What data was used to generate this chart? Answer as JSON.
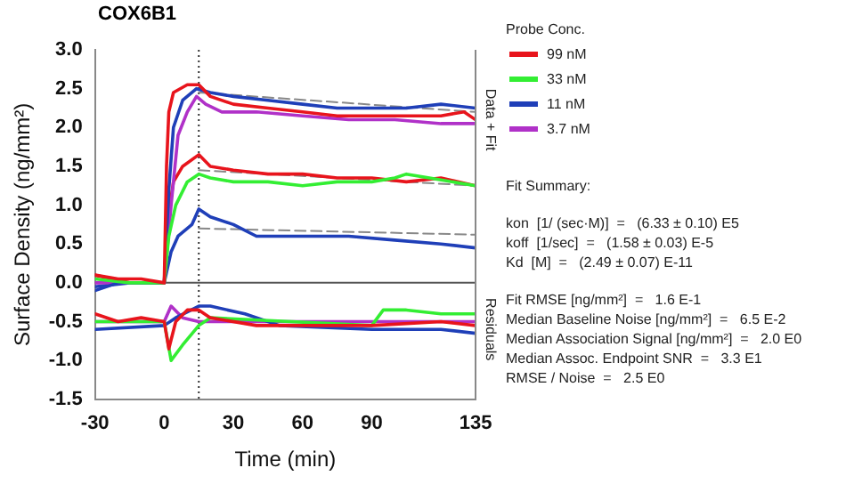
{
  "chart_data": {
    "type": "line",
    "title": "COX6B1",
    "xlabel": "Time (min)",
    "ylabel": "Surface Density (ng/mm²)",
    "legend_title": "Probe Conc.",
    "legend": "right",
    "marker": "none",
    "grid": false,
    "xlim": [
      -30,
      135
    ],
    "xticks": [
      -30,
      0,
      30,
      60,
      90,
      135
    ],
    "ylim": [
      -1.5,
      3.0
    ],
    "yticks": [
      {
        "value": -1.5,
        "label": "-1.5"
      },
      {
        "value": -1,
        "label": "-1.0"
      },
      {
        "value": -0.5,
        "label": "-0.5"
      },
      {
        "value": 0,
        "label": "0.0"
      },
      {
        "value": 0.5,
        "label": "0.5"
      },
      {
        "value": 1,
        "label": "1.0"
      },
      {
        "value": 1.5,
        "label": "1.5"
      },
      {
        "value": 2,
        "label": "2.0"
      },
      {
        "value": 2.5,
        "label": "2.5"
      },
      {
        "value": 3,
        "label": "3.0"
      }
    ],
    "ref_lines": [
      {
        "axis": "y",
        "value": 0,
        "color": "#555555",
        "line_style": "solid"
      },
      {
        "axis": "x",
        "value": 15,
        "color": "#333333",
        "line_style": "dotted"
      }
    ],
    "series": [
      {
        "name": "99 nM",
        "color": "#e8141c",
        "x": [
          -30,
          -20,
          -10,
          0,
          1,
          2,
          4,
          10,
          15,
          20,
          30,
          45,
          60,
          75,
          90,
          105,
          120,
          130,
          135
        ],
        "values": [
          0.1,
          0.05,
          0.05,
          0,
          1.5,
          2.2,
          2.45,
          2.55,
          2.55,
          2.4,
          2.3,
          2.25,
          2.2,
          2.15,
          2.15,
          2.15,
          2.15,
          2.2,
          2.1
        ]
      },
      {
        "name": "33 nM",
        "color": "#33ee33",
        "x": [
          -30,
          -15,
          0,
          2,
          5,
          10,
          15,
          20,
          30,
          45,
          60,
          75,
          90,
          100,
          105,
          115,
          135
        ],
        "values": [
          0.05,
          0,
          0,
          0.6,
          1.0,
          1.3,
          1.4,
          1.35,
          1.3,
          1.3,
          1.25,
          1.3,
          1.3,
          1.35,
          1.4,
          1.35,
          1.25
        ]
      },
      {
        "name": "11 nM",
        "color": "#1f3fb8",
        "x": [
          -30,
          -20,
          -10,
          0,
          2,
          4,
          8,
          14,
          20,
          30,
          45,
          60,
          75,
          90,
          105,
          120,
          135
        ],
        "values": [
          -0.1,
          0,
          0,
          0,
          1.2,
          2.0,
          2.35,
          2.5,
          2.45,
          2.4,
          2.35,
          2.3,
          2.25,
          2.25,
          2.25,
          2.3,
          2.25
        ]
      },
      {
        "name": "3.7 nM",
        "color": "#b031c8",
        "x": [
          -30,
          -15,
          0,
          3,
          6,
          10,
          14,
          18,
          25,
          40,
          60,
          80,
          100,
          120,
          135
        ],
        "values": [
          0,
          0,
          0,
          1.0,
          1.9,
          2.2,
          2.4,
          2.3,
          2.2,
          2.2,
          2.15,
          2.1,
          2.1,
          2.05,
          2.05
        ]
      },
      {
        "color": "#e8141c",
        "x": [
          -30,
          -15,
          0,
          2,
          4,
          8,
          15,
          20,
          30,
          45,
          60,
          75,
          90,
          105,
          120,
          135
        ],
        "values": [
          0.1,
          0,
          0,
          0.9,
          1.3,
          1.5,
          1.65,
          1.5,
          1.45,
          1.4,
          1.4,
          1.35,
          1.35,
          1.3,
          1.35,
          1.25
        ]
      },
      {
        "color": "#1f3fb8",
        "x": [
          -30,
          -15,
          0,
          3,
          6,
          12,
          15,
          20,
          30,
          40,
          60,
          80,
          100,
          120,
          135
        ],
        "values": [
          -0.05,
          0,
          0,
          0.4,
          0.6,
          0.75,
          0.95,
          0.85,
          0.75,
          0.6,
          0.6,
          0.6,
          0.55,
          0.5,
          0.45
        ]
      },
      {
        "color": "#888888",
        "line_style": "dashed",
        "x": [
          15,
          135
        ],
        "values": [
          2.45,
          2.2
        ]
      },
      {
        "color": "#888888",
        "line_style": "dashed",
        "x": [
          15,
          135
        ],
        "values": [
          1.45,
          1.25
        ]
      },
      {
        "color": "#888888",
        "line_style": "dashed",
        "x": [
          15,
          135
        ],
        "values": [
          0.7,
          0.62
        ]
      },
      {
        "color": "#e8141c",
        "x": [
          -30,
          -20,
          -10,
          0,
          2,
          5,
          10,
          15,
          20,
          40,
          60,
          90,
          120,
          135
        ],
        "values": [
          -0.4,
          -0.5,
          -0.45,
          -0.5,
          -0.85,
          -0.5,
          -0.35,
          -0.35,
          -0.45,
          -0.55,
          -0.55,
          -0.55,
          -0.5,
          -0.55
        ]
      },
      {
        "color": "#33ee33",
        "x": [
          -30,
          0,
          3,
          8,
          15,
          20,
          90,
          95,
          105,
          120,
          135
        ],
        "values": [
          -0.5,
          -0.5,
          -1.0,
          -0.8,
          -0.55,
          -0.45,
          -0.55,
          -0.35,
          -0.35,
          -0.4,
          -0.4
        ]
      },
      {
        "color": "#1f3fb8",
        "x": [
          -30,
          0,
          5,
          15,
          20,
          35,
          50,
          90,
          120,
          135
        ],
        "values": [
          -0.6,
          -0.55,
          -0.45,
          -0.3,
          -0.3,
          -0.4,
          -0.55,
          -0.6,
          -0.6,
          -0.65
        ]
      },
      {
        "color": "#b031c8",
        "x": [
          -30,
          0,
          3,
          8,
          15,
          135
        ],
        "values": [
          -0.5,
          -0.5,
          -0.3,
          -0.45,
          -0.5,
          -0.5
        ]
      }
    ],
    "annotations": [
      "Data + Fit",
      "Residuals",
      "Fit Summary:",
      "kon  [1/ (sec·M)]  =   (6.33 ± 0.10) E5",
      "koff  [1/sec]  =   (1.58 ± 0.03) E-5",
      "Kd  [M]  =   (2.49 ± 0.07) E-11",
      "Fit RMSE [ng/mm²]  =   1.6 E-1",
      "Median Baseline Noise [ng/mm²]  =   6.5 E-2",
      "Median Association Signal [ng/mm²]  =   2.0 E0",
      "Median Assoc. Endpoint SNR  =   3.3 E1",
      "RMSE / Noise  =   2.5 E0"
    ]
  }
}
